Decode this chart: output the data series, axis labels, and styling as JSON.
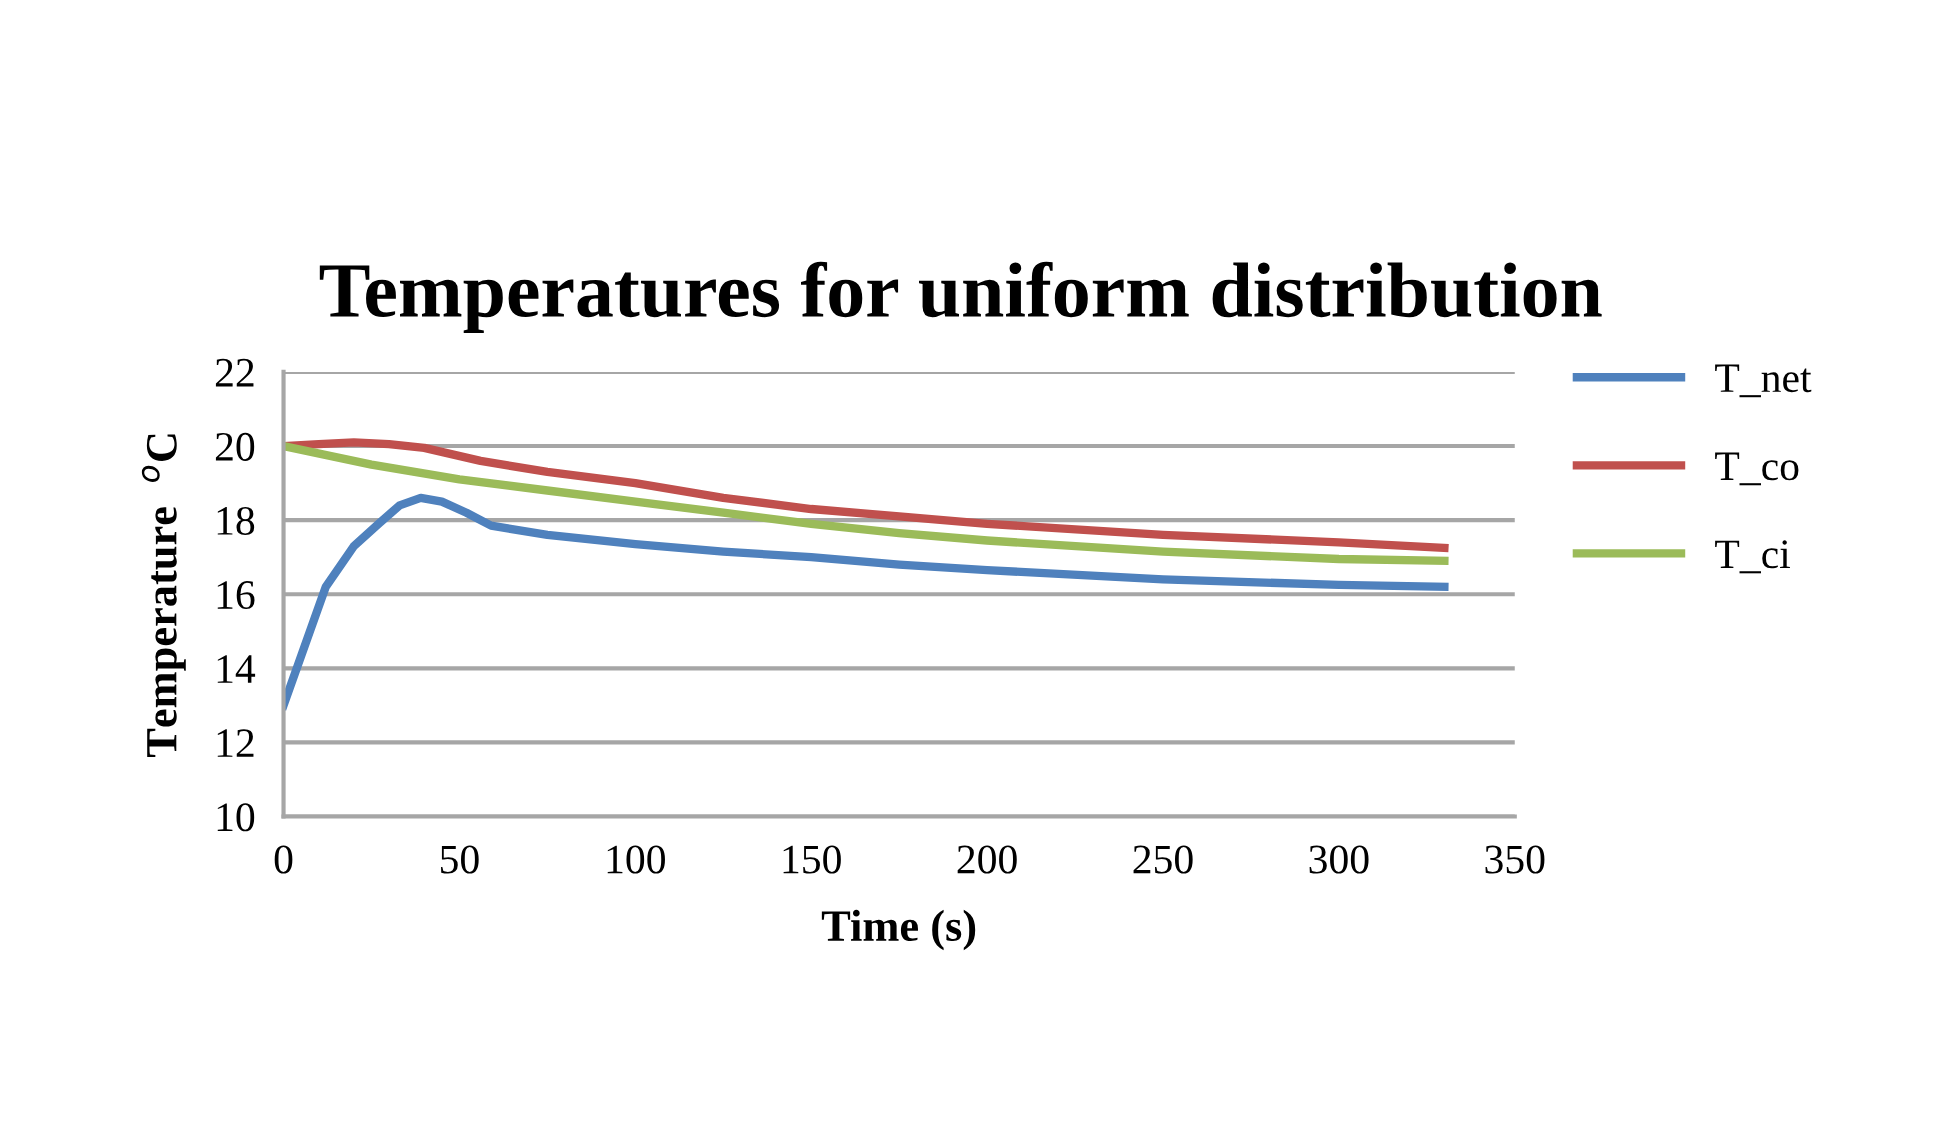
{
  "chart_data": {
    "type": "line",
    "title": "Temperatures for uniform distribution",
    "xlabel": "Time (s)",
    "ylabel": "Temperature  $^{o}$C",
    "xlim": [
      0,
      350
    ],
    "xticks": [
      0,
      50,
      100,
      150,
      200,
      250,
      300,
      350
    ],
    "ylim": [
      10,
      22
    ],
    "yticks": [
      10,
      12,
      14,
      16,
      18,
      20,
      22
    ],
    "grid": "y",
    "legend": "right",
    "marker": "none",
    "line_style": "solid",
    "series": [
      {
        "name": "T_net",
        "color": "#4f81bd",
        "x": [
          0,
          6,
          12,
          20,
          27,
          33,
          39,
          45,
          52,
          59,
          75,
          100,
          125,
          150,
          175,
          200,
          250,
          300,
          330
        ],
        "values": [
          13,
          14.6,
          16.2,
          17.3,
          17.9,
          18.4,
          18.6,
          18.5,
          18.2,
          17.85,
          17.6,
          17.35,
          17.15,
          17.0,
          16.8,
          16.65,
          16.4,
          16.25,
          16.2
        ]
      },
      {
        "name": "T_co",
        "color": "#c0504d",
        "x": [
          0,
          10,
          20,
          30,
          40,
          56,
          75,
          100,
          125,
          150,
          175,
          200,
          250,
          300,
          330
        ],
        "values": [
          20,
          20.05,
          20.1,
          20.05,
          19.95,
          19.6,
          19.3,
          19.0,
          18.6,
          18.3,
          18.1,
          17.9,
          17.6,
          17.4,
          17.25
        ]
      },
      {
        "name": "T_ci",
        "color": "#9bbb59",
        "x": [
          0,
          25,
          50,
          75,
          100,
          125,
          150,
          175,
          200,
          250,
          300,
          330
        ],
        "values": [
          20,
          19.5,
          19.1,
          18.8,
          18.5,
          18.2,
          17.9,
          17.65,
          17.45,
          17.15,
          16.95,
          16.9
        ]
      }
    ]
  }
}
